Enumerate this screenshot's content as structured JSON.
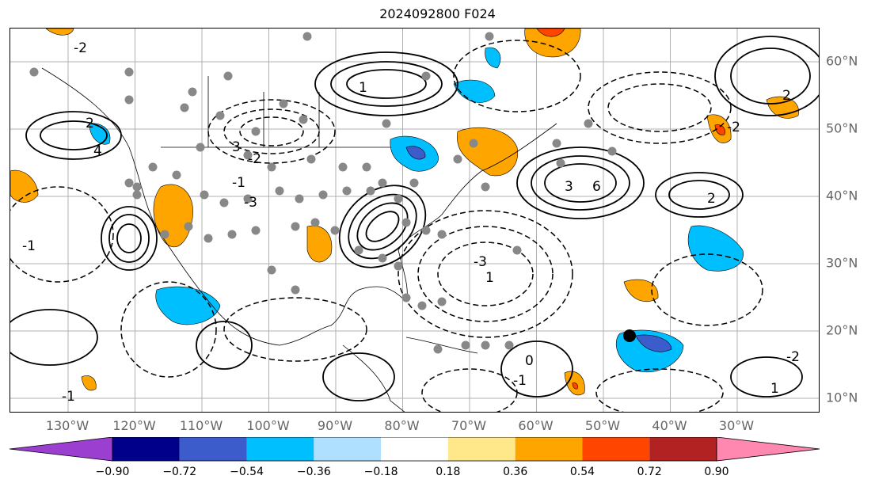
{
  "title": "2024092800 F024",
  "lat_labels": [
    {
      "text": "60°N",
      "value": 60
    },
    {
      "text": "50°N",
      "value": 50
    },
    {
      "text": "40°N",
      "value": 40
    },
    {
      "text": "30°N",
      "value": 30
    },
    {
      "text": "20°N",
      "value": 20
    },
    {
      "text": "10°N",
      "value": 10
    }
  ],
  "lon_labels": [
    {
      "text": "130°W",
      "value": -130
    },
    {
      "text": "120°W",
      "value": -120
    },
    {
      "text": "110°W",
      "value": -110
    },
    {
      "text": "100°W",
      "value": -100
    },
    {
      "text": "90°W",
      "value": -90
    },
    {
      "text": "80°W",
      "value": -80
    },
    {
      "text": "70°W",
      "value": -70
    },
    {
      "text": "60°W",
      "value": -60
    },
    {
      "text": "50°W",
      "value": -50
    },
    {
      "text": "40°W",
      "value": -40
    },
    {
      "text": "30°W",
      "value": -30
    }
  ],
  "colorbar": {
    "ticks": [
      "−0.90",
      "−0.72",
      "−0.54",
      "−0.36",
      "−0.18",
      "0.18",
      "0.36",
      "0.54",
      "0.72",
      "0.90"
    ],
    "colors": [
      "#9a3fd0",
      "#00008b",
      "#3c5ccc",
      "#00bfff",
      "#b0e0ff",
      "#ffffff",
      "#ffe88a",
      "#ffa500",
      "#ff4500",
      "#b22222",
      "#ff88b0"
    ]
  },
  "contour_labels": [
    "-2",
    "2",
    "4",
    "3",
    "-1",
    "-2",
    "-3",
    "1",
    "-1",
    "6",
    "3",
    "2",
    "-2",
    "1",
    "-3",
    "0",
    "-1",
    "2",
    "-2",
    "1",
    "-1"
  ]
}
